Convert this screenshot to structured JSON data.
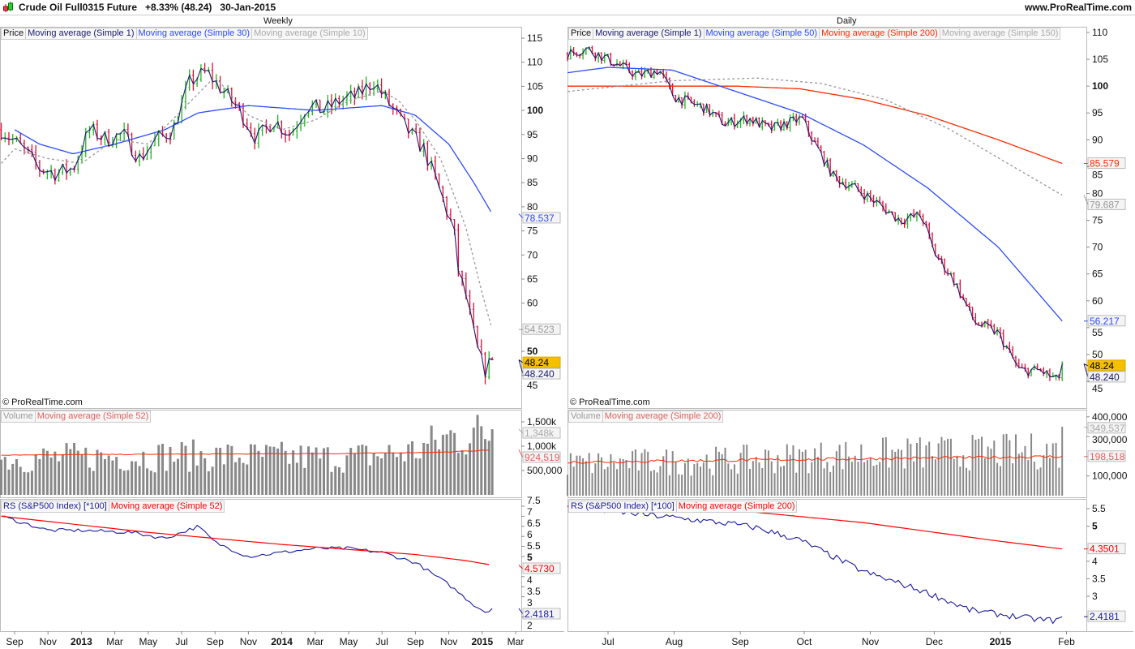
{
  "header": {
    "title": "Crude Oil Full0315 Future",
    "change": "+8.33% (48.24)",
    "date": "30-Jan-2015",
    "site": "www.ProRealTime.com",
    "copyright": "© ProRealTime.com"
  },
  "colors": {
    "up": "#22b422",
    "down": "#e0103a",
    "ma1": "#1a1a6e",
    "ma_blue": "#2a4bff",
    "ma_gray": "#999999",
    "ma_red": "#ff2a00",
    "vol": "#888888",
    "rs": "#1a1aa0",
    "tag_price": "#f5c000"
  },
  "weekly": {
    "period": "Weekly",
    "legend": [
      "Price",
      "Moving average (Simple 1)",
      "Moving average (Simple 30)",
      "Moving average (Simple 10)"
    ],
    "vol_legend": [
      "Volume",
      "Moving average (Simple 52)"
    ],
    "rs_legend": [
      "RS (S&P500 Index) [*100]",
      "Moving average (Simple 52)"
    ]
  },
  "daily": {
    "period": "Daily",
    "legend": [
      "Price",
      "Moving average (Simple 1)",
      "Moving average (Simple 50)",
      "Moving average (Simple 200)",
      "Moving average (Simple 150)"
    ],
    "vol_legend": [
      "Volume",
      "Moving average (Simple 200)"
    ],
    "rs_legend": [
      "RS (S&P500 Index) [*100]",
      "Moving average (Simple 200)"
    ]
  },
  "chart_data": [
    {
      "type": "candlestick",
      "title": "Crude Oil Full0315 Future - Weekly",
      "x_unit": "months since Sep 2012",
      "x_ticks": [
        {
          "t": 0,
          "label": "Sep"
        },
        {
          "t": 2,
          "label": "Nov"
        },
        {
          "t": 4,
          "label": "2013",
          "bold": true
        },
        {
          "t": 6,
          "label": "Mar"
        },
        {
          "t": 8,
          "label": "May"
        },
        {
          "t": 10,
          "label": "Jul"
        },
        {
          "t": 12,
          "label": "Sep"
        },
        {
          "t": 14,
          "label": "Nov"
        },
        {
          "t": 16,
          "label": "2014",
          "bold": true
        },
        {
          "t": 18,
          "label": "Mar"
        },
        {
          "t": 20,
          "label": "May"
        },
        {
          "t": 22,
          "label": "Jul"
        },
        {
          "t": 24,
          "label": "Sep"
        },
        {
          "t": 26,
          "label": "Nov"
        },
        {
          "t": 28,
          "label": "2015",
          "bold": true
        },
        {
          "t": 30,
          "label": "Mar"
        }
      ],
      "price": {
        "ylim": [
          45,
          115
        ],
        "y_ticks": [
          {
            "v": 115,
            "label": "115"
          },
          {
            "v": 110,
            "label": "110"
          },
          {
            "v": 105,
            "label": "105"
          },
          {
            "v": 100,
            "label": "100",
            "bold": true
          },
          {
            "v": 95,
            "label": "95"
          },
          {
            "v": 90,
            "label": "90"
          },
          {
            "v": 85,
            "label": "85"
          },
          {
            "v": 80,
            "label": "80"
          },
          {
            "v": 75,
            "label": "75"
          },
          {
            "v": 70,
            "label": "70"
          },
          {
            "v": 65,
            "label": "65"
          },
          {
            "v": 60,
            "label": "60"
          },
          {
            "v": 50,
            "label": "50",
            "bold": true
          },
          {
            "v": 45,
            "label": "45"
          }
        ],
        "close": [
          [
            -0.8,
            96
          ],
          [
            0.5,
            92
          ],
          [
            1.5,
            88
          ],
          [
            2.5,
            87
          ],
          [
            3.5,
            88
          ],
          [
            4.5,
            96
          ],
          [
            5.5,
            94
          ],
          [
            6.5,
            95
          ],
          [
            7.5,
            90
          ],
          [
            8.5,
            94
          ],
          [
            9.5,
            96
          ],
          [
            10.5,
            106
          ],
          [
            11.5,
            108
          ],
          [
            12.5,
            104
          ],
          [
            13.5,
            100
          ],
          [
            14.5,
            94
          ],
          [
            15.5,
            98
          ],
          [
            16.5,
            95
          ],
          [
            17.5,
            101
          ],
          [
            18.5,
            100
          ],
          [
            19.5,
            102
          ],
          [
            20.5,
            103
          ],
          [
            21.5,
            106
          ],
          [
            22.5,
            101
          ],
          [
            23.5,
            96
          ],
          [
            24.5,
            92
          ],
          [
            25.5,
            83
          ],
          [
            26.3,
            75
          ],
          [
            26.6,
            66
          ],
          [
            27.0,
            62
          ],
          [
            27.4,
            55
          ],
          [
            27.8,
            49
          ],
          [
            28.2,
            46
          ],
          [
            28.6,
            48.24
          ]
        ],
        "ma30": [
          [
            0,
            96
          ],
          [
            1.5,
            93
          ],
          [
            3.5,
            91
          ],
          [
            6,
            93
          ],
          [
            9,
            96
          ],
          [
            11,
            99.5
          ],
          [
            14,
            101
          ],
          [
            18,
            100
          ],
          [
            22,
            101
          ],
          [
            24,
            99
          ],
          [
            26,
            93
          ],
          [
            27.5,
            85
          ],
          [
            28.6,
            78.537
          ]
        ],
        "ma10": [
          [
            -0.8,
            89
          ],
          [
            0,
            92
          ],
          [
            2,
            90
          ],
          [
            4,
            89
          ],
          [
            6,
            94
          ],
          [
            8,
            93
          ],
          [
            10,
            100
          ],
          [
            12,
            107
          ],
          [
            14,
            99
          ],
          [
            16,
            96
          ],
          [
            18,
            98
          ],
          [
            20,
            102
          ],
          [
            22,
            104
          ],
          [
            23,
            102
          ],
          [
            24,
            98
          ],
          [
            25.5,
            90
          ],
          [
            27,
            76
          ],
          [
            28,
            62
          ],
          [
            28.6,
            54.523
          ]
        ],
        "tags": [
          {
            "v": 78.537,
            "label": "78.537",
            "color": "#2a4bff"
          },
          {
            "v": 54.523,
            "label": "54.523",
            "color": "#999999"
          },
          {
            "v": 48.24,
            "label": "48.24",
            "color": "#000000",
            "fill": "#f5c000",
            "dy": -7
          },
          {
            "v": 48.24,
            "label": "48.240",
            "color": "#1a1a6e",
            "dy": 7
          }
        ]
      },
      "volume": {
        "y_ticks": [
          {
            "v": 1500000,
            "label": "1,500k"
          },
          {
            "v": 1000000,
            "label": "1,000k"
          },
          {
            "v": 500000,
            "label": "500,000"
          }
        ],
        "level": [
          [
            -0.8,
            780000
          ],
          [
            10,
            850000
          ],
          [
            20,
            800000
          ],
          [
            24,
            950000
          ],
          [
            26,
            1250000
          ],
          [
            28.6,
            1348000
          ]
        ],
        "ma52": [
          [
            -0.8,
            820000
          ],
          [
            20,
            850000
          ],
          [
            26,
            880000
          ],
          [
            28.6,
            924519
          ]
        ],
        "tags": [
          {
            "v": 1348000,
            "label": "1,348k",
            "color": "#aaaaaa"
          },
          {
            "v": 924519,
            "label": "924,519",
            "color": "#e06060"
          }
        ]
      },
      "rs": {
        "y_ticks": [
          {
            "v": 7.5,
            "label": "7.5"
          },
          {
            "v": 7,
            "label": "7"
          },
          {
            "v": 6.5,
            "label": "6.5"
          },
          {
            "v": 6,
            "label": "6"
          },
          {
            "v": 5.5,
            "label": "5.5"
          },
          {
            "v": 5,
            "label": "5",
            "bold": true
          },
          {
            "v": 4,
            "label": "4"
          },
          {
            "v": 3.5,
            "label": "3.5"
          },
          {
            "v": 3,
            "label": "3"
          },
          {
            "v": 2,
            "label": "2"
          }
        ],
        "line": [
          [
            -0.8,
            7.0
          ],
          [
            2,
            6.3
          ],
          [
            4,
            6.3
          ],
          [
            7,
            6.2
          ],
          [
            9,
            5.9
          ],
          [
            11,
            6.5
          ],
          [
            12,
            5.7
          ],
          [
            14,
            5.0
          ],
          [
            16,
            5.2
          ],
          [
            18,
            5.4
          ],
          [
            20,
            5.4
          ],
          [
            22,
            5.2
          ],
          [
            24,
            4.7
          ],
          [
            26,
            3.6
          ],
          [
            27.5,
            2.6
          ],
          [
            28.3,
            2.2
          ],
          [
            28.6,
            2.4181
          ]
        ],
        "ma52": [
          [
            -0.8,
            7.0
          ],
          [
            8,
            6.2
          ],
          [
            16,
            5.6
          ],
          [
            24,
            5.1
          ],
          [
            27,
            4.8
          ],
          [
            28.6,
            4.573
          ]
        ],
        "tags": [
          {
            "v": 4.573,
            "label": "4.5730",
            "color": "#ff0000"
          },
          {
            "v": 2.4181,
            "label": "2.4181",
            "color": "#1a1aa0"
          }
        ]
      }
    },
    {
      "type": "candlestick",
      "title": "Crude Oil Full0315 Future - Daily",
      "x_unit": "days since 1 Jul 2014",
      "x_ticks": [
        {
          "t": 0,
          "label": "Jul"
        },
        {
          "t": 31,
          "label": "Aug"
        },
        {
          "t": 62,
          "label": "Sep"
        },
        {
          "t": 92,
          "label": "Oct"
        },
        {
          "t": 123,
          "label": "Nov"
        },
        {
          "t": 153,
          "label": "Dec"
        },
        {
          "t": 184,
          "label": "2015",
          "bold": true
        },
        {
          "t": 215,
          "label": "Feb"
        }
      ],
      "price": {
        "ylim": [
          45,
          110
        ],
        "y_ticks": [
          {
            "v": 110,
            "label": "110"
          },
          {
            "v": 105,
            "label": "105"
          },
          {
            "v": 100,
            "label": "100",
            "bold": true
          },
          {
            "v": 95,
            "label": "95"
          },
          {
            "v": 90,
            "label": "90"
          },
          {
            "v": 85,
            "label": "85"
          },
          {
            "v": 80,
            "label": "80"
          },
          {
            "v": 75,
            "label": "75"
          },
          {
            "v": 70,
            "label": "70"
          },
          {
            "v": 65,
            "label": "65"
          },
          {
            "v": 60,
            "label": "60"
          },
          {
            "v": 55,
            "label": "55"
          },
          {
            "v": 50,
            "label": "50"
          },
          {
            "v": 45,
            "label": "45"
          }
        ],
        "close": [
          [
            -19,
            106
          ],
          [
            -10,
            107
          ],
          [
            0,
            105
          ],
          [
            14,
            102
          ],
          [
            24,
            103
          ],
          [
            31,
            98
          ],
          [
            45,
            96
          ],
          [
            55,
            93
          ],
          [
            66,
            94
          ],
          [
            76,
            92
          ],
          [
            91,
            94
          ],
          [
            96,
            90
          ],
          [
            106,
            83
          ],
          [
            116,
            81
          ],
          [
            127,
            78
          ],
          [
            137,
            75
          ],
          [
            147,
            76
          ],
          [
            153,
            69
          ],
          [
            162,
            64
          ],
          [
            172,
            56
          ],
          [
            183,
            54
          ],
          [
            193,
            47
          ],
          [
            203,
            47
          ],
          [
            211,
            45
          ],
          [
            213,
            48.24
          ]
        ],
        "ma50": [
          [
            -19,
            102.5
          ],
          [
            0,
            103.5
          ],
          [
            30,
            103
          ],
          [
            60,
            99
          ],
          [
            90,
            95
          ],
          [
            120,
            89
          ],
          [
            150,
            81
          ],
          [
            183,
            70
          ],
          [
            213,
            56.217
          ]
        ],
        "ma200": [
          [
            -19,
            100
          ],
          [
            60,
            100
          ],
          [
            90,
            99.5
          ],
          [
            120,
            97.5
          ],
          [
            150,
            94.5
          ],
          [
            183,
            90
          ],
          [
            213,
            85.579
          ]
        ],
        "ma150": [
          [
            -19,
            99
          ],
          [
            30,
            101
          ],
          [
            70,
            101.5
          ],
          [
            100,
            100.5
          ],
          [
            130,
            97.5
          ],
          [
            160,
            92
          ],
          [
            190,
            85
          ],
          [
            213,
            79.687
          ]
        ],
        "tags": [
          {
            "v": 85.579,
            "label": "85.579",
            "color": "#ff2a00"
          },
          {
            "v": 79.687,
            "label": "79.687",
            "color": "#999999"
          },
          {
            "v": 56.217,
            "label": "56.217",
            "color": "#2a4bff"
          },
          {
            "v": 48.24,
            "label": "48.24",
            "color": "#000000",
            "fill": "#f5c000",
            "dy": -7
          },
          {
            "v": 48.24,
            "label": "48.240",
            "color": "#1a1a6e",
            "dy": 7
          }
        ]
      },
      "volume": {
        "y_ticks": [
          {
            "v": 400000,
            "label": "400,000"
          },
          {
            "v": 300000,
            "label": "300,000"
          },
          {
            "v": 100000,
            "label": "100,000"
          }
        ],
        "level": [
          [
            -19,
            170000
          ],
          [
            60,
            190000
          ],
          [
            120,
            220000
          ],
          [
            213,
            240000
          ]
        ],
        "ma200": [
          [
            -19,
            170000
          ],
          [
            100,
            185000
          ],
          [
            213,
            198518
          ]
        ],
        "tags": [
          {
            "v": 349537,
            "label": "349,537",
            "color": "#aaaaaa"
          },
          {
            "v": 198518,
            "label": "198,518",
            "color": "#e06060"
          }
        ]
      },
      "rs": {
        "y_ticks": [
          {
            "v": 5.5,
            "label": "5.5"
          },
          {
            "v": 5,
            "label": "5",
            "bold": true
          },
          {
            "v": 4,
            "label": "4"
          },
          {
            "v": 3.5,
            "label": "3.5"
          },
          {
            "v": 3,
            "label": "3"
          }
        ],
        "line": [
          [
            -19,
            5.55
          ],
          [
            30,
            5.25
          ],
          [
            60,
            5.05
          ],
          [
            70,
            4.95
          ],
          [
            90,
            4.6
          ],
          [
            120,
            3.7
          ],
          [
            150,
            3.1
          ],
          [
            170,
            2.6
          ],
          [
            200,
            2.35
          ],
          [
            211,
            2.3
          ],
          [
            213,
            2.4181
          ]
        ],
        "ma200": [
          [
            -19,
            5.55
          ],
          [
            60,
            5.45
          ],
          [
            120,
            5.1
          ],
          [
            180,
            4.6
          ],
          [
            213,
            4.3501
          ]
        ],
        "tags": [
          {
            "v": 4.3501,
            "label": "4.3501",
            "color": "#ff0000"
          },
          {
            "v": 2.4181,
            "label": "2.4181",
            "color": "#1a1aa0"
          }
        ]
      }
    }
  ]
}
